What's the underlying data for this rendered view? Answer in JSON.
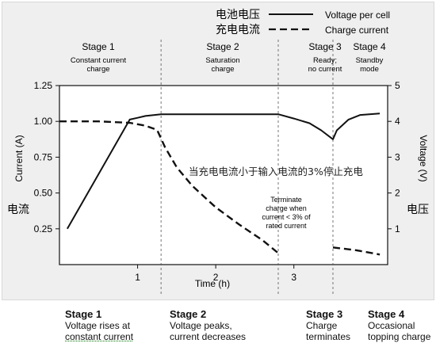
{
  "chart_data": {
    "type": "line",
    "legend": {
      "placement": "top-right",
      "entries": [
        {
          "zh": "电池电压",
          "en": "Voltage per cell",
          "style": "solid"
        },
        {
          "zh": "充电电流",
          "en": "Charge current",
          "style": "dashed"
        }
      ]
    },
    "xlabel": "Time (h)",
    "xticks": [
      "1",
      "2",
      "3"
    ],
    "xlim": [
      0,
      4.2
    ],
    "ylabel_left": "Current (A)",
    "ylabel_left_zh": "电流",
    "ylim_left": [
      0,
      1.25
    ],
    "yticks_left": [
      "0.25",
      "0.50",
      "0.75",
      "1.00",
      "1.25"
    ],
    "ylabel_right": "Voltage (V)",
    "ylabel_right_zh": "电压",
    "ylim_right": [
      0,
      5
    ],
    "yticks_right": [
      "1",
      "2",
      "3",
      "4",
      "5"
    ],
    "stage_boundaries_h": [
      1.3,
      2.8,
      3.5
    ],
    "stages": [
      {
        "title": "Stage 1",
        "lines": [
          "Constant current",
          "charge"
        ]
      },
      {
        "title": "Stage 2",
        "lines": [
          "Saturation",
          "charge"
        ]
      },
      {
        "title": "Stage 3",
        "lines": [
          "Ready;",
          "no current"
        ]
      },
      {
        "title": "Stage 4",
        "lines": [
          "Standby",
          "mode"
        ]
      }
    ],
    "series": [
      {
        "name": "Voltage per cell",
        "axis": "right",
        "style": "solid",
        "segments": [
          [
            [
              0.1,
              1.0
            ],
            [
              0.9,
              4.05
            ],
            [
              1.0,
              4.1
            ],
            [
              1.1,
              4.15
            ],
            [
              1.3,
              4.2
            ],
            [
              2.0,
              4.2
            ],
            [
              2.8,
              4.2
            ],
            [
              3.0,
              4.08
            ],
            [
              3.2,
              3.95
            ],
            [
              3.35,
              3.75
            ],
            [
              3.5,
              3.5
            ],
            [
              3.55,
              3.75
            ],
            [
              3.7,
              4.05
            ],
            [
              3.85,
              4.18
            ],
            [
              4.1,
              4.22
            ]
          ]
        ]
      },
      {
        "name": "Charge current",
        "axis": "left",
        "style": "dashed",
        "segments": [
          [
            [
              0.0,
              1.0
            ],
            [
              0.5,
              1.0
            ],
            [
              0.9,
              0.99
            ],
            [
              1.1,
              0.97
            ],
            [
              1.25,
              0.94
            ],
            [
              1.35,
              0.82
            ],
            [
              1.5,
              0.68
            ],
            [
              1.7,
              0.55
            ],
            [
              2.0,
              0.4
            ],
            [
              2.3,
              0.28
            ],
            [
              2.6,
              0.17
            ],
            [
              2.8,
              0.08
            ]
          ],
          [
            [
              3.5,
              0.12
            ],
            [
              3.8,
              0.1
            ],
            [
              4.1,
              0.07
            ]
          ]
        ]
      }
    ],
    "annotations": [
      {
        "id": "terminate",
        "lines": [
          "Terminate",
          "charge when",
          "current < 3% of",
          "rated current"
        ]
      },
      {
        "id": "overlay",
        "text": "当充电电流小于输入电流的3%停止充电"
      }
    ]
  },
  "captions": [
    {
      "title": "Stage 1",
      "lines": [
        "Voltage rises at",
        "constant current"
      ]
    },
    {
      "title": "Stage 2",
      "lines": [
        "Voltage peaks,",
        "current decreases"
      ]
    },
    {
      "title": "Stage 3",
      "lines": [
        "Charge",
        "terminates"
      ]
    },
    {
      "title": "Stage 4",
      "lines": [
        "Occasional",
        "topping charge"
      ]
    }
  ]
}
